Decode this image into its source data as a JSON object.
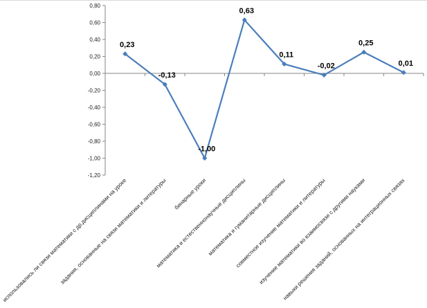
{
  "chart_data": {
    "type": "line",
    "categories": [
      "использовались ли связи математики с др.дисциплинами на уроке",
      "задания, основанные на связи математики и литературы",
      "бинарные уроки",
      "математика и естественнонаучные дисциплины",
      "математика и гуманитарные дисциплины",
      "совместное изучение математики и литературы",
      "изучение математики во взаимосвязи с другими науками",
      "навыки решения  заданий, основанных на интеграционных связях"
    ],
    "values": [
      0.23,
      -0.13,
      -1.0,
      0.63,
      0.11,
      -0.02,
      0.25,
      0.01
    ],
    "data_labels": [
      "0,23",
      "-0,13",
      "-1,00",
      "0,63",
      "0,11",
      "-0,02",
      "0,25",
      "0,01"
    ],
    "ylim": [
      -1.2,
      0.8
    ],
    "yticks": [
      0.8,
      0.6,
      0.4,
      0.2,
      0.0,
      -0.2,
      -0.4,
      -0.6,
      -0.8,
      -1.0,
      -1.2
    ],
    "ytick_labels": [
      "0,80",
      "0,60",
      "0,40",
      "0,20",
      "0,00",
      "-0,20",
      "-0,40",
      "-0,60",
      "-0,80",
      "-1,00",
      "-1,20"
    ],
    "title": "",
    "xlabel": "",
    "ylabel": "",
    "grid": false,
    "legend": "none",
    "line_color": "#4a7ebb",
    "marker_color": "#4a7ebb",
    "axis_color": "#868686"
  }
}
